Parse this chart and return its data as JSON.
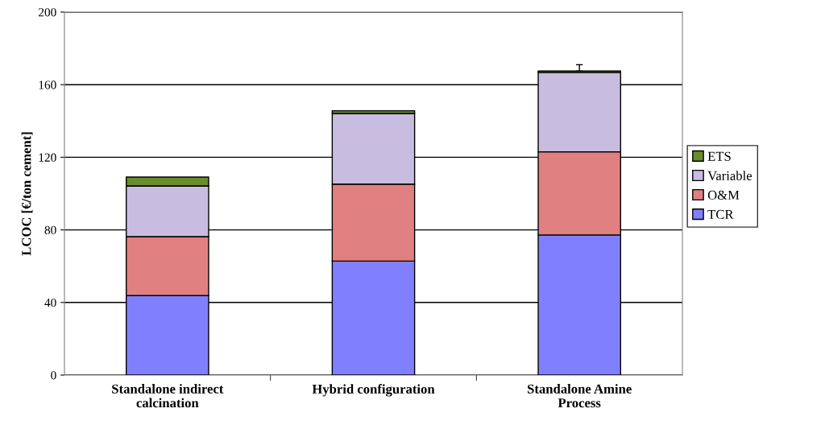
{
  "chart_data": {
    "type": "bar",
    "stacked": true,
    "ylabel": "LCOC [€/ton cement]",
    "categories": [
      "Standalone indirect\ncalcination",
      "Hybrid configuration",
      "Standalone Amine\nProcess"
    ],
    "series": [
      {
        "name": "TCR",
        "color": "#8080ff",
        "values": [
          43.8,
          62.8,
          77.2
        ]
      },
      {
        "name": "O&M",
        "color": "#e08080",
        "values": [
          32.5,
          42.4,
          45.8
        ]
      },
      {
        "name": "Variable",
        "color": "#c8bce0",
        "values": [
          27.9,
          38.9,
          43.7
        ]
      },
      {
        "name": "ETS",
        "color": "#6a8c2a",
        "values": [
          4.9,
          1.5,
          0.8
        ],
        "errors": [
          null,
          null,
          [
            167.5,
            171
          ]
        ]
      }
    ],
    "ylim": [
      0,
      200
    ],
    "yticks": [
      0,
      40,
      80,
      120,
      160,
      200
    ],
    "grid": "y",
    "legend": "right"
  }
}
